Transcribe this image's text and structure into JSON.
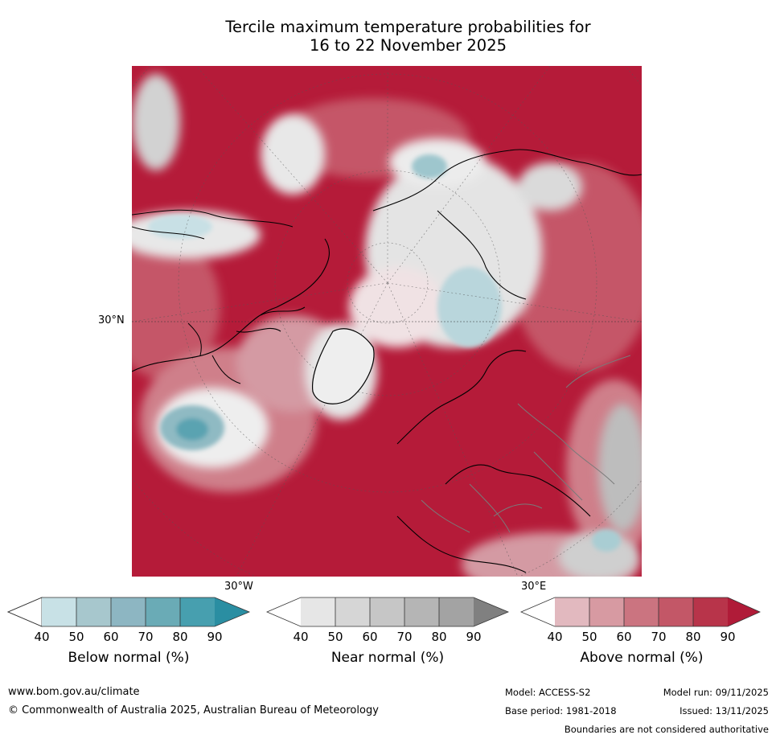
{
  "title": {
    "line1": "Tercile maximum temperature probabilities for",
    "line2": "16 to 22 November 2025"
  },
  "map": {
    "lat_label": "30°N",
    "lon_labels": [
      "30°W",
      "30°E"
    ],
    "projection": "north-polar-stereographic"
  },
  "colorbars": [
    {
      "name": "below-normal",
      "label": "Below normal (%)",
      "ticks": [
        "40",
        "50",
        "60",
        "70",
        "80",
        "90"
      ],
      "colors": [
        "#ffffff",
        "#c8e1e6",
        "#a7c7cd",
        "#8db6c2",
        "#6aabb6",
        "#479faf",
        "#2a8ea2"
      ]
    },
    {
      "name": "near-normal",
      "label": "Near normal (%)",
      "ticks": [
        "40",
        "50",
        "60",
        "70",
        "80",
        "90"
      ],
      "colors": [
        "#ffffff",
        "#e6e6e6",
        "#d6d6d6",
        "#c6c6c6",
        "#b5b5b5",
        "#a3a3a3",
        "#808080"
      ]
    },
    {
      "name": "above-normal",
      "label": "Above normal (%)",
      "ticks": [
        "40",
        "50",
        "60",
        "70",
        "80",
        "90"
      ],
      "colors": [
        "#ffffff",
        "#e2b9bf",
        "#d79aa2",
        "#cb7480",
        "#c35767",
        "#b8344a",
        "#b01b38"
      ]
    }
  ],
  "footer": {
    "website": "www.bom.gov.au/climate",
    "copyright": "© Commonwealth of Australia 2025, Australian Bureau of Meteorology",
    "model": "Model: ACCESS-S2",
    "model_run": "Model run: 09/11/2025",
    "base_period": "Base period: 1981-2018",
    "issued": "Issued: 13/11/2025",
    "disclaimer": "Boundaries are not considered authoritative"
  }
}
